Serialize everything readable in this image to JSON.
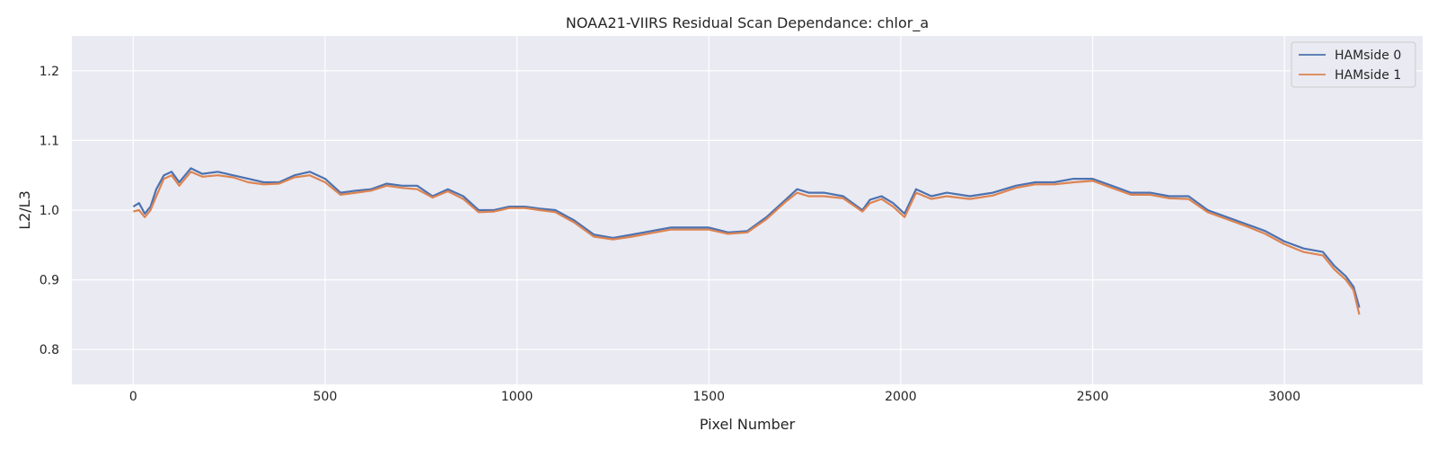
{
  "chart_data": {
    "type": "line",
    "title": "NOAA21-VIIRS Residual Scan Dependance: chlor_a",
    "xlabel": "Pixel Number",
    "ylabel": "L2/L3",
    "xlim": [
      -160,
      3360
    ],
    "ylim": [
      0.75,
      1.25
    ],
    "xticks": [
      0,
      500,
      1000,
      1500,
      2000,
      2500,
      3000
    ],
    "xtick_labels": [
      "0",
      "500",
      "1000",
      "1500",
      "2000",
      "2500",
      "3000"
    ],
    "yticks": [
      0.8,
      0.9,
      1.0,
      1.1,
      1.2
    ],
    "ytick_labels": [
      "0.8",
      "0.9",
      "1.0",
      "1.1",
      "1.2"
    ],
    "grid": true,
    "legend_position": "top-right",
    "x": [
      0,
      15,
      30,
      45,
      60,
      80,
      100,
      120,
      150,
      180,
      220,
      260,
      300,
      340,
      380,
      420,
      460,
      500,
      540,
      580,
      620,
      660,
      700,
      740,
      780,
      820,
      860,
      900,
      940,
      980,
      1020,
      1060,
      1100,
      1150,
      1200,
      1250,
      1300,
      1350,
      1400,
      1450,
      1500,
      1550,
      1600,
      1650,
      1700,
      1730,
      1760,
      1800,
      1850,
      1900,
      1920,
      1950,
      1980,
      2010,
      2040,
      2080,
      2120,
      2180,
      2240,
      2300,
      2350,
      2400,
      2450,
      2500,
      2550,
      2600,
      2650,
      2700,
      2750,
      2800,
      2850,
      2900,
      2950,
      3000,
      3050,
      3100,
      3130,
      3160,
      3180,
      3195
    ],
    "series": [
      {
        "name": "HAMside 0",
        "color": "#4c72b0",
        "values": [
          1.005,
          1.01,
          0.995,
          1.005,
          1.03,
          1.05,
          1.055,
          1.04,
          1.06,
          1.052,
          1.055,
          1.05,
          1.045,
          1.04,
          1.04,
          1.05,
          1.055,
          1.045,
          1.025,
          1.028,
          1.03,
          1.038,
          1.035,
          1.035,
          1.02,
          1.03,
          1.02,
          1.0,
          1.0,
          1.005,
          1.005,
          1.002,
          1.0,
          0.985,
          0.965,
          0.96,
          0.965,
          0.97,
          0.975,
          0.975,
          0.975,
          0.968,
          0.97,
          0.99,
          1.015,
          1.03,
          1.025,
          1.025,
          1.02,
          1.0,
          1.015,
          1.02,
          1.01,
          0.995,
          1.03,
          1.02,
          1.025,
          1.02,
          1.025,
          1.035,
          1.04,
          1.04,
          1.045,
          1.045,
          1.035,
          1.025,
          1.025,
          1.02,
          1.02,
          1.0,
          0.99,
          0.98,
          0.97,
          0.955,
          0.945,
          0.94,
          0.92,
          0.905,
          0.89,
          0.86
        ]
      },
      {
        "name": "HAMside 1",
        "color": "#dd8452",
        "values": [
          0.998,
          1.0,
          0.99,
          1.0,
          1.02,
          1.045,
          1.05,
          1.035,
          1.055,
          1.048,
          1.05,
          1.047,
          1.04,
          1.037,
          1.038,
          1.047,
          1.05,
          1.04,
          1.022,
          1.025,
          1.028,
          1.035,
          1.032,
          1.03,
          1.018,
          1.027,
          1.016,
          0.997,
          0.998,
          1.003,
          1.003,
          1.0,
          0.997,
          0.982,
          0.962,
          0.958,
          0.962,
          0.967,
          0.972,
          0.972,
          0.972,
          0.966,
          0.968,
          0.987,
          1.012,
          1.025,
          1.02,
          1.02,
          1.017,
          0.998,
          1.01,
          1.016,
          1.005,
          0.99,
          1.025,
          1.016,
          1.02,
          1.016,
          1.021,
          1.032,
          1.037,
          1.037,
          1.04,
          1.042,
          1.032,
          1.022,
          1.022,
          1.017,
          1.016,
          0.997,
          0.987,
          0.977,
          0.966,
          0.951,
          0.94,
          0.935,
          0.915,
          0.9,
          0.885,
          0.85
        ]
      }
    ]
  }
}
